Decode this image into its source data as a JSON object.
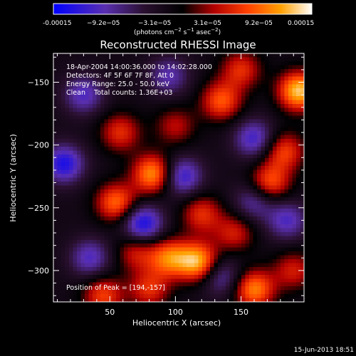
{
  "colorbar": {
    "ticks": [
      "-0.00015",
      "−9.2e−05",
      "−3.1e−05",
      "3.1e−05",
      "9.2e−05",
      "0.00015"
    ],
    "unit_main": "(photons cm",
    "unit_sup1": "−2",
    "unit_mid": " s",
    "unit_sup2": "−1",
    "unit_end": " asec",
    "unit_sup3": "−2",
    "unit_close": ")"
  },
  "chart_data": {
    "type": "heatmap",
    "title": "Reconstructed RHESSI Image",
    "xlabel": "Heliocentric X (arcsec)",
    "ylabel": "Heliocentric Y (arcsec)",
    "xlim": [
      7,
      198
    ],
    "ylim": [
      -325,
      -127
    ],
    "xticks": [
      50,
      100,
      150
    ],
    "yticks": [
      -150,
      -200,
      -250,
      -300
    ],
    "zlim": [
      -0.00015,
      0.00015
    ],
    "colormap": [
      "#0000ff",
      "#5a2fb0",
      "#2a1030",
      "#000000",
      "#b00000",
      "#ff4000",
      "#ffa000",
      "#ffffff"
    ],
    "annotations": [
      "18-Apr-2004 14:00:36.000 to 14:02:28.000",
      "Detectors: 4F 5F 6F 7F 8F, Att 0",
      "Energy Range: 25.0 - 50.0 keV",
      "Clean    Total counts: 1.36E+03"
    ],
    "peak_text": "Position of Peak = [194,-157]",
    "peak": [
      194,
      -157
    ],
    "footer_date": "15-Jun-2013 18:51",
    "sources": [
      {
        "x": 194,
        "y": -157,
        "v": 0.00015
      },
      {
        "x": 117,
        "y": -293,
        "v": 0.00014
      },
      {
        "x": 83,
        "y": -223,
        "v": 0.00013
      },
      {
        "x": 55,
        "y": -246,
        "v": 0.00011
      },
      {
        "x": 95,
        "y": -290,
        "v": 0.00011
      },
      {
        "x": 160,
        "y": -315,
        "v": 0.00012
      },
      {
        "x": 172,
        "y": -230,
        "v": 0.0001
      },
      {
        "x": 183,
        "y": -205,
        "v": 9e-05
      },
      {
        "x": 135,
        "y": -165,
        "v": 0.0001
      },
      {
        "x": 150,
        "y": -140,
        "v": 8e-05
      },
      {
        "x": 58,
        "y": -190,
        "v": 8e-05
      },
      {
        "x": 45,
        "y": -320,
        "v": 9e-05
      },
      {
        "x": 120,
        "y": -255,
        "v": 8e-05
      },
      {
        "x": 145,
        "y": -270,
        "v": 7e-05
      },
      {
        "x": 80,
        "y": -315,
        "v": 8e-05
      },
      {
        "x": 70,
        "y": -285,
        "v": 7e-05
      },
      {
        "x": 100,
        "y": -185,
        "v": 6e-05
      },
      {
        "x": 190,
        "y": -300,
        "v": 7e-05
      },
      {
        "x": 15,
        "y": -215,
        "v": -0.00011
      },
      {
        "x": 75,
        "y": -263,
        "v": -0.00012
      },
      {
        "x": 30,
        "y": -160,
        "v": -8e-05
      },
      {
        "x": 105,
        "y": -225,
        "v": -0.0001
      },
      {
        "x": 160,
        "y": -195,
        "v": -9e-05
      },
      {
        "x": 35,
        "y": -290,
        "v": -8e-05
      },
      {
        "x": 135,
        "y": -305,
        "v": -7e-05
      },
      {
        "x": 185,
        "y": -260,
        "v": -8e-05
      },
      {
        "x": 95,
        "y": -145,
        "v": -7e-05
      },
      {
        "x": 160,
        "y": -245,
        "v": -7e-05
      }
    ]
  }
}
